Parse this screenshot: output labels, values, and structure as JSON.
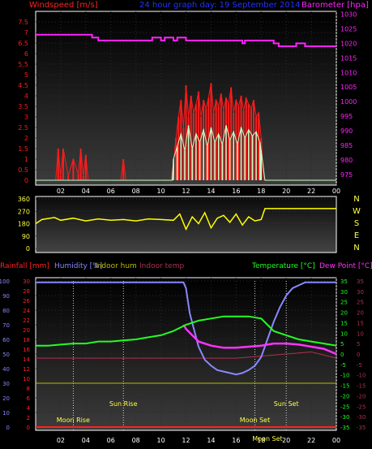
{
  "window": {
    "title": "24 hour graph day: 19 September 2014"
  },
  "colors": {
    "wind": "#ff1a1a",
    "gust": "#c8ffc8",
    "barometer": "#ff22ff",
    "direction": "#ffff00",
    "humidity": "#8888ff",
    "temperature": "#22ff22",
    "dew": "#ff33ff",
    "indoor_temp": "#b03050",
    "indoor_hum": "#bbbb00",
    "rain": "#ff2222",
    "text_blue": "#2233ff",
    "axis_yellow": "#ffff44"
  },
  "chart_data": [
    {
      "type": "line",
      "panel": "wind_barometer",
      "title": "24 hour graph day: 19 September 2014",
      "ylabel_left": "Windspeed [m/s]",
      "ylabel_right": "Barometer [hpa]",
      "yticks_left": [
        "0",
        "0.5",
        "1",
        "1.5",
        "2",
        "2.5",
        "3",
        "3.5",
        "4",
        "4.5",
        "5",
        "5.5",
        "6",
        "6.5",
        "7",
        "7.5"
      ],
      "yticks_right": [
        "975",
        "980",
        "985",
        "990",
        "995",
        "1000",
        "1005",
        "1010",
        "1015",
        "1020",
        "1025",
        "1030"
      ],
      "xticks": [
        "02",
        "04",
        "06",
        "08",
        "10",
        "12",
        "14",
        "16",
        "18",
        "20",
        "22",
        "00"
      ],
      "ylim_left": [
        0,
        8
      ],
      "ylim_right": [
        973,
        1031
      ],
      "grid": true,
      "series": [
        {
          "name": "Windspeed",
          "x": [
            0,
            1.6,
            1.8,
            2.0,
            2.2,
            2.6,
            3.0,
            3.4,
            3.6,
            3.8,
            4.0,
            4.2,
            6.8,
            7.0,
            7.2,
            10.8,
            11.0,
            11.2,
            11.4,
            11.6,
            11.8,
            12.0,
            12.2,
            12.4,
            12.6,
            12.8,
            13.0,
            13.2,
            13.4,
            13.6,
            13.8,
            14.0,
            14.2,
            14.4,
            14.6,
            14.8,
            15.0,
            15.2,
            15.4,
            15.6,
            15.8,
            16.0,
            16.2,
            16.4,
            16.6,
            16.8,
            17.0,
            17.2,
            17.4,
            17.6,
            17.8,
            18.0,
            18.2,
            24
          ],
          "y": [
            0,
            0,
            1.5,
            0.2,
            1.5,
            0.2,
            1.0,
            0.3,
            1.5,
            0.2,
            1.2,
            0,
            0,
            1.0,
            0,
            0,
            0.8,
            2.0,
            3.0,
            3.8,
            2.5,
            4.5,
            3.0,
            4.0,
            3.2,
            3.6,
            4.2,
            3.0,
            3.8,
            3.4,
            3.9,
            4.6,
            3.2,
            3.8,
            3.5,
            4.1,
            3.3,
            3.9,
            3.6,
            4.4,
            3.2,
            3.8,
            3.5,
            4.0,
            3.3,
            3.9,
            3.6,
            3.4,
            3.8,
            3.0,
            3.2,
            2.0,
            0,
            0
          ]
        },
        {
          "name": "Gust",
          "x": [
            0,
            10.9,
            11.0,
            11.3,
            11.6,
            11.9,
            12.2,
            12.5,
            12.8,
            13.1,
            13.4,
            13.7,
            14.0,
            14.3,
            14.6,
            14.9,
            15.2,
            15.5,
            15.8,
            16.1,
            16.4,
            16.7,
            17.0,
            17.3,
            17.6,
            17.9,
            18.0,
            18.3,
            24
          ],
          "y": [
            0,
            0,
            1.0,
            1.6,
            2.2,
            1.4,
            2.6,
            1.5,
            2.2,
            1.8,
            2.4,
            1.6,
            2.5,
            1.8,
            2.2,
            1.7,
            2.6,
            1.9,
            2.3,
            1.7,
            2.5,
            2.0,
            2.4,
            2.1,
            2.3,
            1.8,
            1.4,
            0,
            0
          ]
        },
        {
          "name": "Barometer",
          "x": [
            0,
            0.5,
            4.5,
            5.0,
            9.0,
            9.3,
            10.0,
            10.3,
            11.0,
            11.3,
            12.0,
            12.5,
            16.5,
            16.7,
            19.0,
            19.4,
            20.5,
            20.8,
            21.5,
            22.0,
            24.0
          ],
          "y": [
            1023,
            1023,
            1022,
            1021,
            1021,
            1022,
            1021,
            1022,
            1021,
            1022,
            1021,
            1021,
            1020,
            1021,
            1020,
            1019,
            1019,
            1020,
            1019,
            1019,
            1019
          ]
        }
      ]
    },
    {
      "type": "scatter",
      "panel": "wind_direction",
      "yticks": [
        "0",
        "90",
        "180",
        "270",
        "360"
      ],
      "ylabels_right": [
        "N",
        "W",
        "S",
        "E",
        "N"
      ],
      "ylim": [
        0,
        360
      ],
      "xticks": [],
      "grid": true,
      "series": [
        {
          "name": "Wind direction",
          "x": [
            0,
            0.5,
            1.5,
            2.0,
            3.0,
            4.0,
            5.0,
            6.0,
            7.0,
            8.0,
            9.0,
            10.0,
            11.0,
            11.5,
            12.0,
            12.5,
            13.0,
            13.5,
            14.0,
            14.5,
            15.0,
            15.5,
            16.0,
            16.5,
            17.0,
            17.5,
            18.0,
            18.3,
            24.0
          ],
          "y": [
            180,
            210,
            225,
            205,
            220,
            200,
            215,
            205,
            210,
            200,
            215,
            210,
            205,
            250,
            140,
            230,
            180,
            260,
            150,
            220,
            240,
            190,
            250,
            170,
            230,
            200,
            210,
            290,
            290
          ]
        }
      ]
    },
    {
      "type": "line",
      "panel": "temp_humidity",
      "labels": [
        "Rainfall [mm]",
        "Humidity [%]",
        "Indoor hum",
        "Indoor temp",
        "Temperature [°C]",
        "Dew Point [°C]"
      ],
      "yticks_humidity": [
        "0",
        "10",
        "20",
        "30",
        "40",
        "50",
        "60",
        "70",
        "80",
        "90",
        "100"
      ],
      "yticks_rain": [
        "0",
        "2",
        "4",
        "6",
        "8",
        "10",
        "12",
        "14",
        "16",
        "18",
        "20",
        "22",
        "24",
        "26",
        "28",
        "30"
      ],
      "yticks_temperature": [
        "-35",
        "-30",
        "-25",
        "-20",
        "-15",
        "-10",
        "-5",
        "0",
        "5",
        "10",
        "15",
        "20",
        "25",
        "30",
        "35"
      ],
      "yticks_indoor": [
        "-35",
        "-30",
        "-25",
        "-20",
        "-15",
        "-10",
        "-5",
        "0",
        "5",
        "10",
        "15",
        "20",
        "25",
        "30",
        "35"
      ],
      "xticks": [
        "02",
        "04",
        "06",
        "08",
        "10",
        "12",
        "14",
        "16",
        "18",
        "20",
        "22",
        "00"
      ],
      "ylim_temperature": [
        -35,
        35
      ],
      "annotations": [
        "Moon Rise",
        "Sun Rise",
        "Moon Set",
        "Sun Set",
        "Moon Set"
      ],
      "series": [
        {
          "name": "Humidity",
          "x": [
            0,
            11.8,
            12.0,
            12.3,
            12.6,
            13.0,
            13.5,
            14.0,
            14.5,
            15.0,
            15.5,
            16.0,
            16.5,
            17.0,
            17.5,
            18.0,
            18.5,
            19.0,
            19.5,
            20.0,
            20.5,
            21.0,
            21.5,
            22.0,
            24.0
          ],
          "y": [
            99,
            99,
            95,
            78,
            68,
            55,
            46,
            42,
            39,
            38,
            37,
            36,
            37,
            39,
            42,
            48,
            60,
            72,
            82,
            90,
            95,
            97,
            99,
            99,
            99
          ]
        },
        {
          "name": "Temperature",
          "x": [
            0,
            1,
            2,
            3,
            4,
            5,
            6,
            7,
            8,
            9,
            10,
            11,
            12,
            13,
            14,
            15,
            16,
            17,
            18,
            18.5,
            19,
            20,
            21,
            22,
            23,
            24
          ],
          "y": [
            4,
            4,
            4.5,
            5,
            5,
            6,
            6,
            6.5,
            7,
            8,
            9,
            11,
            14,
            16,
            17,
            18,
            18,
            18,
            17,
            14,
            11,
            9,
            7,
            6,
            5,
            4
          ]
        },
        {
          "name": "Dew Point",
          "x": [
            11.8,
            12.0,
            12.5,
            13,
            14,
            15,
            16,
            17,
            18,
            18.5,
            19,
            20,
            21,
            22,
            23,
            24
          ],
          "y": [
            14,
            12,
            9,
            6,
            4,
            3,
            3,
            3.5,
            4,
            4.5,
            5,
            5,
            4.5,
            3.5,
            2.5,
            0
          ]
        },
        {
          "name": "Indoor temp",
          "x": [
            0,
            4,
            8,
            12,
            16,
            18,
            20,
            22,
            24
          ],
          "y": [
            -2,
            -2,
            -2,
            -2,
            -2,
            -1,
            0,
            1,
            -2
          ]
        },
        {
          "name": "Indoor hum",
          "x": [
            0,
            24
          ],
          "y": [
            30,
            30
          ]
        },
        {
          "name": "Rainfall",
          "x": [
            0,
            24
          ],
          "y": [
            0,
            0
          ]
        }
      ]
    }
  ]
}
